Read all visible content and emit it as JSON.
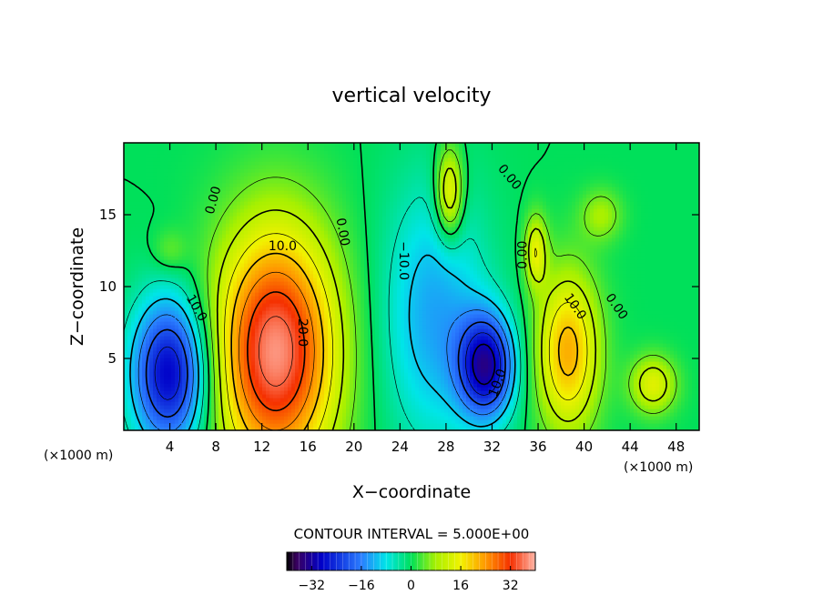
{
  "chart_data": {
    "type": "heatmap",
    "title": "vertical velocity",
    "xlabel": "X−coordinate",
    "ylabel": "Z−coordinate",
    "x_unit_left": "(×1000 m)",
    "x_unit_right": "(×1000 m)",
    "xlim": [
      0,
      50
    ],
    "ylim": [
      0,
      20
    ],
    "x_ticks": [
      4,
      8,
      12,
      16,
      20,
      24,
      28,
      32,
      36,
      40,
      44,
      48
    ],
    "y_ticks": [
      5,
      10,
      15
    ],
    "contour_interval_text": "CONTOUR INTERVAL = 5.000E+00",
    "colorbar": {
      "range": [
        -40,
        40
      ],
      "ticks": [
        -32,
        -16,
        0,
        16,
        32
      ],
      "tick_labels": [
        "−32",
        "−16",
        "0",
        "16",
        "32"
      ]
    },
    "features": [
      {
        "x": 13.2,
        "z": 5.5,
        "value": 38,
        "rx": 5.2,
        "rz": 8.5
      },
      {
        "x": 4.0,
        "z": 4.0,
        "value": -30,
        "rx": 3.3,
        "rz": 5.2
      },
      {
        "x": 31.5,
        "z": 4.5,
        "value": -30,
        "rx": 2.4,
        "rz": 3.6
      },
      {
        "x": 27.0,
        "z": 8.0,
        "value": -13,
        "rx": 4.5,
        "rz": 9.0
      },
      {
        "x": 38.6,
        "z": 5.5,
        "value": 22,
        "rx": 2.7,
        "rz": 5.5
      },
      {
        "x": 28.3,
        "z": 16.5,
        "value": 18,
        "rx": 1.2,
        "rz": 3.2
      },
      {
        "x": 35.8,
        "z": 12.5,
        "value": 14,
        "rx": 1.0,
        "rz": 2.5
      },
      {
        "x": 46.0,
        "z": 3.2,
        "value": 14,
        "rx": 2.0,
        "rz": 2.0
      },
      {
        "x": 41.5,
        "z": 15.0,
        "value": 8,
        "rx": 1.8,
        "rz": 1.8
      },
      {
        "x": 4.0,
        "z": 12.5,
        "value": 5,
        "rx": 1.5,
        "rz": 1.5
      }
    ],
    "contour_labels": [
      {
        "text": "0.00",
        "x": 7.8,
        "z": 16.0,
        "angle": -75
      },
      {
        "text": "10.0",
        "x": 13.8,
        "z": 12.8,
        "angle": 0
      },
      {
        "text": "20.0",
        "x": 15.5,
        "z": 6.8,
        "angle": 90
      },
      {
        "text": "0.00",
        "x": 19.0,
        "z": 13.8,
        "angle": 80
      },
      {
        "text": "10.0",
        "x": 6.3,
        "z": 8.5,
        "angle": 60
      },
      {
        "text": "−10.0",
        "x": 24.3,
        "z": 11.8,
        "angle": 90
      },
      {
        "text": "0.00",
        "x": 33.5,
        "z": 17.6,
        "angle": 50
      },
      {
        "text": "0.00",
        "x": 34.7,
        "z": 12.2,
        "angle": -90
      },
      {
        "text": "10.0",
        "x": 39.2,
        "z": 8.6,
        "angle": 55
      },
      {
        "text": "0.00",
        "x": 42.8,
        "z": 8.6,
        "angle": 55
      },
      {
        "text": "10.0",
        "x": 32.5,
        "z": 3.3,
        "angle": -70
      }
    ]
  }
}
